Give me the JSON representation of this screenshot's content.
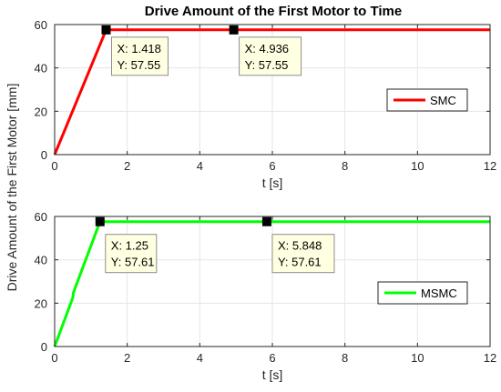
{
  "figure": {
    "title": "Drive Amount of the First Motor to Time",
    "shared_ylabel": "Drive Amount of the First Motor [mm]"
  },
  "chart_data": [
    {
      "type": "line",
      "xlabel": "t [s]",
      "ylabel": "",
      "xlim": [
        0,
        12
      ],
      "ylim": [
        0,
        60
      ],
      "xticks": [
        0,
        2,
        4,
        6,
        8,
        10,
        12
      ],
      "yticks": [
        0,
        20,
        40,
        60
      ],
      "grid": true,
      "legend_position": "center-right",
      "series": [
        {
          "name": "SMC",
          "color": "#ff0000",
          "x": [
            0,
            1.418,
            12
          ],
          "y": [
            0,
            57.55,
            57.55
          ]
        }
      ],
      "datatips": [
        {
          "x_text": "X: 1.418",
          "y_text": "Y: 57.55",
          "x": 1.418,
          "y": 57.55
        },
        {
          "x_text": "X: 4.936",
          "y_text": "Y: 57.55",
          "x": 4.936,
          "y": 57.55
        }
      ]
    },
    {
      "type": "line",
      "xlabel": "t [s]",
      "ylabel": "",
      "xlim": [
        0,
        12
      ],
      "ylim": [
        0,
        60
      ],
      "xticks": [
        0,
        2,
        4,
        6,
        8,
        10,
        12
      ],
      "yticks": [
        0,
        20,
        40,
        60
      ],
      "grid": true,
      "legend_position": "center-right",
      "series": [
        {
          "name": "MSMC",
          "color": "#00ff00",
          "x": [
            0,
            0.5,
            0.52,
            1.25,
            12
          ],
          "y": [
            0,
            22.5,
            25.0,
            57.61,
            57.61
          ]
        }
      ],
      "datatips": [
        {
          "x_text": "X: 1.25",
          "y_text": "Y: 57.61",
          "x": 1.25,
          "y": 57.61
        },
        {
          "x_text": "X: 5.848",
          "y_text": "Y: 57.61",
          "x": 5.848,
          "y": 57.61
        }
      ]
    }
  ]
}
